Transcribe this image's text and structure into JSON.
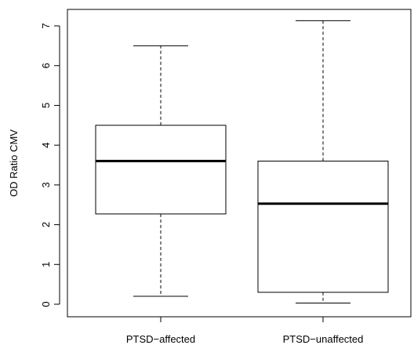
{
  "chart_data": {
    "type": "boxplot",
    "title": "",
    "xlabel": "",
    "ylabel": "OD Ratio CMV",
    "ylim": [
      -0.3,
      7.5
    ],
    "yticks": [
      0,
      1,
      2,
      3,
      4,
      5,
      6,
      7
    ],
    "categories": [
      "PTSD−affected",
      "PTSD−unaffected"
    ],
    "boxes": [
      {
        "category": "PTSD−affected",
        "whisker_low": 0.2,
        "q1": 2.27,
        "median": 3.6,
        "q3": 4.5,
        "whisker_high": 6.5
      },
      {
        "category": "PTSD−unaffected",
        "whisker_low": 0.03,
        "q1": 0.3,
        "median": 2.53,
        "q3": 3.6,
        "whisker_high": 7.13
      }
    ],
    "grid": false,
    "legend": "none",
    "colors": {
      "stroke": "#000000",
      "background": "#ffffff"
    }
  }
}
